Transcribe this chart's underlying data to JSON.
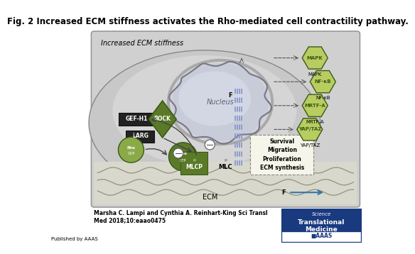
{
  "title": "Fig. 2 Increased ECM stiffness activates the Rho-mediated cell contractility pathway.",
  "title_fontsize": 8.5,
  "bg_color": "#ffffff",
  "label_increased_ecm": "Increased ECM stiffness",
  "label_nucleus": "Nucleus",
  "label_ecm": "ECM",
  "label_gef": "GEF-H1",
  "label_larg": "LARG",
  "label_rock": "ROCK",
  "label_mlcp": "MLCP",
  "label_mlc": "MLC",
  "label_mapk": "MAPK",
  "label_nfkb": "NF-κB",
  "label_mrtfa": "MRTF-A",
  "label_yaptaz": "YAP/TAZ",
  "label_survival": "Survival\nMigration\nProliferation\nECM synthesis",
  "citation_line1": "Marsha C. Lampi and Cynthia A. Reinhart-King Sci Transl",
  "citation_line2": "Med 2018;10:eaao0475",
  "published_by": "Published by AAAS",
  "green_dark": "#3a5a18",
  "green_mid": "#5a7a28",
  "green_light": "#8aaa48",
  "green_pale": "#c8d870",
  "green_hex": "#b8cc60"
}
